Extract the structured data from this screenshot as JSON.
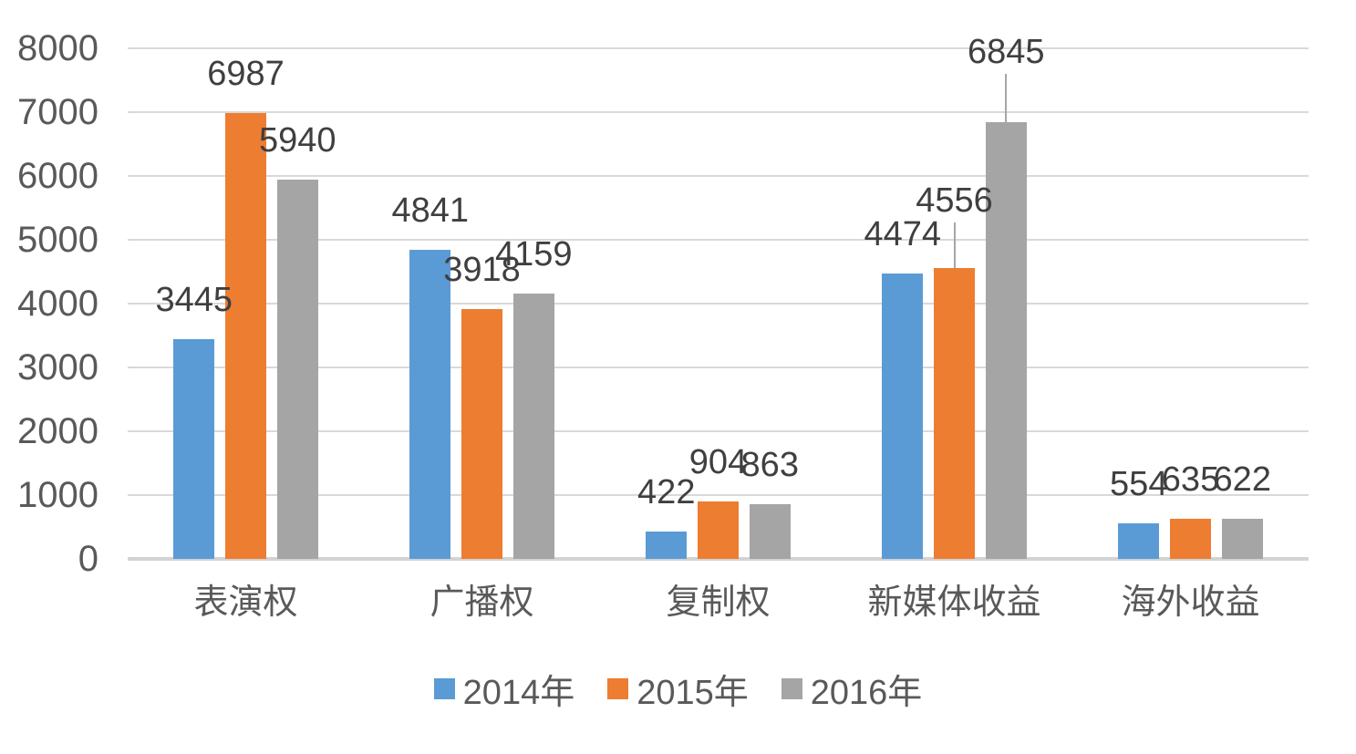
{
  "chart_data": {
    "type": "bar",
    "title": "",
    "categories": [
      "表演权",
      "广播权",
      "复制权",
      "新媒体收益",
      "海外收益"
    ],
    "series": [
      {
        "name": "2014年",
        "color": "#5B9BD5",
        "values": [
          3445,
          4841,
          422,
          4474,
          554
        ]
      },
      {
        "name": "2015年",
        "color": "#ED7D31",
        "values": [
          6987,
          3918,
          904,
          4556,
          635
        ]
      },
      {
        "name": "2016年",
        "color": "#A5A5A5",
        "values": [
          5940,
          4159,
          863,
          6845,
          622
        ]
      }
    ],
    "xlabel": "",
    "ylabel": "",
    "ylim": [
      0,
      8000
    ],
    "yticks": [
      0,
      1000,
      2000,
      3000,
      4000,
      5000,
      6000,
      7000,
      8000
    ],
    "grid": true,
    "legend_position": "bottom",
    "data_labels": "outside-end",
    "moved_labels": [
      {
        "series": 1,
        "category": 3,
        "dy": -31,
        "leader": true
      },
      {
        "series": 2,
        "category": 3,
        "dy": -34,
        "leader": true
      }
    ],
    "colors": {
      "gridline": "#D9D9D9",
      "axis_line": "#D3D3D3",
      "data_label_text": "#3F3F3F",
      "axis_text": "#595959",
      "leader_line": "#A6A6A6",
      "background": "#FFFFFF"
    }
  }
}
